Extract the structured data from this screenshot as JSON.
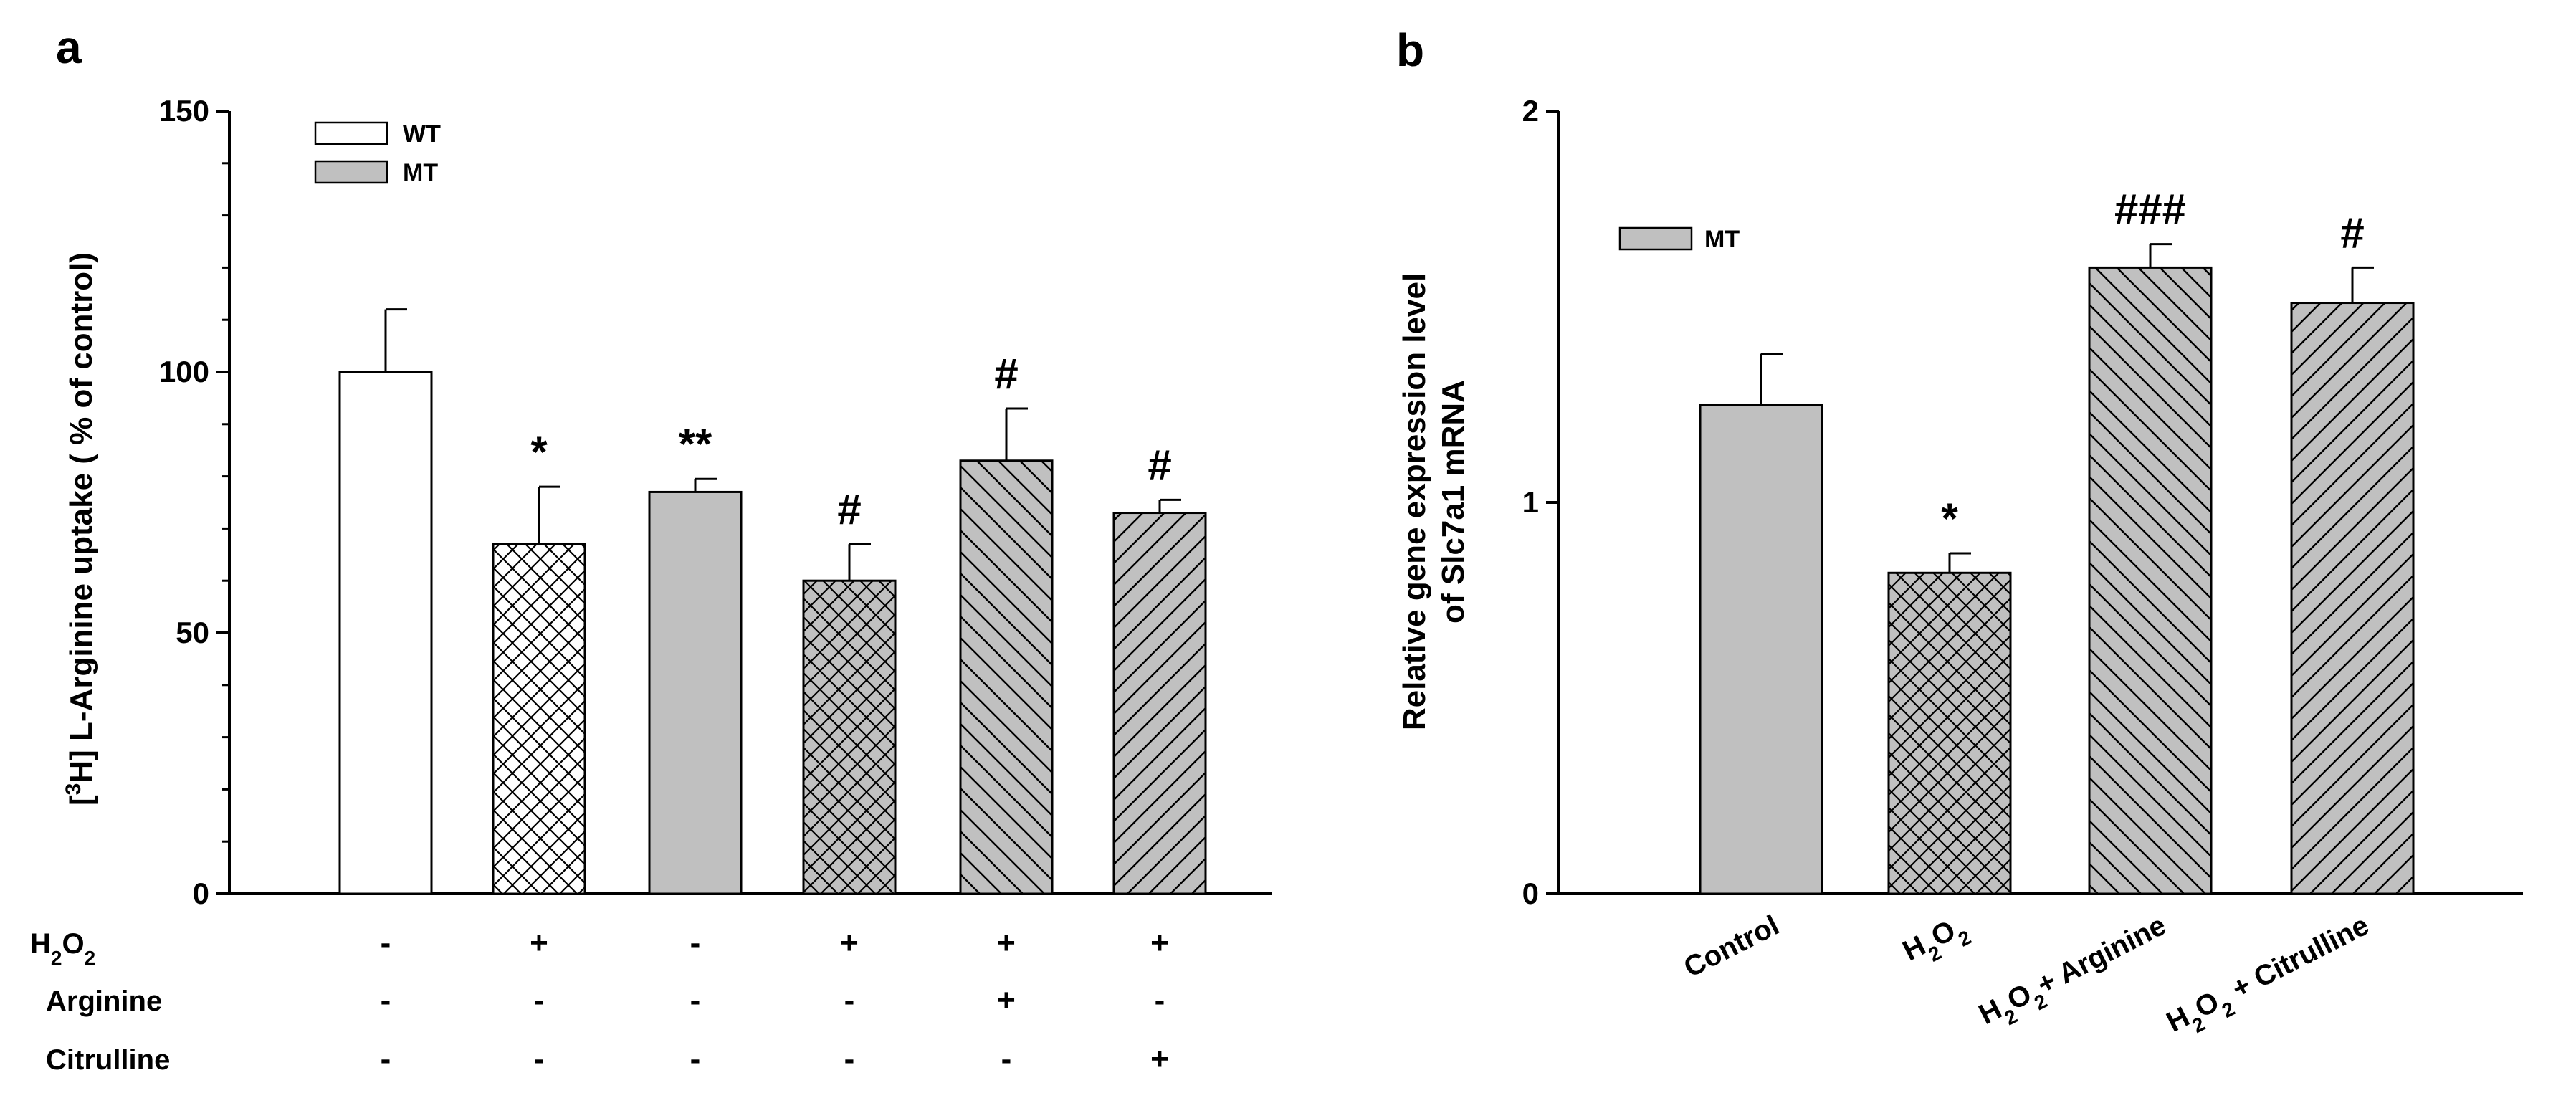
{
  "colors": {
    "wt_fill": "#ffffff",
    "mt_fill": "#c0c0c0",
    "axis": "#000000"
  },
  "chart_data": [
    {
      "panel_label": "a",
      "type": "bar",
      "ylabel": "L-Arginine uptake ( % of control)",
      "ylabel_prefix": "[",
      "ylabel_sup": "3",
      "ylabel_mid": "H] ",
      "ylim": [
        0,
        150
      ],
      "yticks": [
        0,
        50,
        100,
        150
      ],
      "legend": [
        {
          "label": "WT",
          "fill": "wt"
        },
        {
          "label": "MT",
          "fill": "mt"
        }
      ],
      "bars": [
        {
          "value": 100,
          "error": 12,
          "fill": "wt",
          "pattern": "none",
          "sig": ""
        },
        {
          "value": 67,
          "error": 11,
          "fill": "wt",
          "pattern": "crosshatch",
          "sig": "*"
        },
        {
          "value": 77,
          "error": 2.5,
          "fill": "mt",
          "pattern": "none",
          "sig": "**"
        },
        {
          "value": 60,
          "error": 7,
          "fill": "mt",
          "pattern": "crosshatch",
          "sig": "#"
        },
        {
          "value": 83,
          "error": 10,
          "fill": "mt",
          "pattern": "backdiag",
          "sig": "#"
        },
        {
          "value": 73,
          "error": 2.5,
          "fill": "mt",
          "pattern": "fwddiag",
          "sig": "#"
        }
      ],
      "treatments": [
        {
          "label_main": "H",
          "label_sub1": "2",
          "label_mid": "O",
          "label_sub2": "2",
          "values": [
            "-",
            "+",
            "-",
            "+",
            "+",
            "+"
          ]
        },
        {
          "label_main": "Arginine",
          "label_sub1": "",
          "label_mid": "",
          "label_sub2": "",
          "values": [
            "-",
            "-",
            "-",
            "-",
            "+",
            "-"
          ]
        },
        {
          "label_main": "Citrulline",
          "label_sub1": "",
          "label_mid": "",
          "label_sub2": "",
          "values": [
            "-",
            "-",
            "-",
            "-",
            "-",
            "+"
          ]
        }
      ]
    },
    {
      "panel_label": "b",
      "type": "bar",
      "ylabel_line1": "Relative gene expression level",
      "ylabel_line2": "of Slc7a1 mRNA",
      "ylim": [
        0,
        2
      ],
      "yticks": [
        0,
        1,
        2
      ],
      "legend": [
        {
          "label": "MT",
          "fill": "mt"
        }
      ],
      "bars": [
        {
          "value": 1.25,
          "error": 0.13,
          "fill": "mt",
          "pattern": "none",
          "sig": ""
        },
        {
          "value": 0.82,
          "error": 0.05,
          "fill": "mt",
          "pattern": "crosshatch",
          "sig": "*"
        },
        {
          "value": 1.6,
          "error": 0.06,
          "fill": "mt",
          "pattern": "backdiag",
          "sig": "###"
        },
        {
          "value": 1.51,
          "error": 0.09,
          "fill": "mt",
          "pattern": "fwddiag",
          "sig": "#"
        }
      ],
      "categories": [
        {
          "parts": [
            [
              "Control",
              "n"
            ]
          ]
        },
        {
          "parts": [
            [
              "H",
              "n"
            ],
            [
              "2",
              "s"
            ],
            [
              "O",
              "n"
            ],
            [
              "2",
              "s"
            ]
          ]
        },
        {
          "parts": [
            [
              "H",
              "n"
            ],
            [
              "2",
              "s"
            ],
            [
              "O",
              "n"
            ],
            [
              "2",
              "s"
            ],
            [
              "+ Arginine",
              "n"
            ]
          ]
        },
        {
          "parts": [
            [
              "H",
              "n"
            ],
            [
              "2",
              "s"
            ],
            [
              "O",
              "n"
            ],
            [
              "2",
              "s"
            ],
            [
              " + Citrulline",
              "n"
            ]
          ]
        }
      ]
    }
  ]
}
